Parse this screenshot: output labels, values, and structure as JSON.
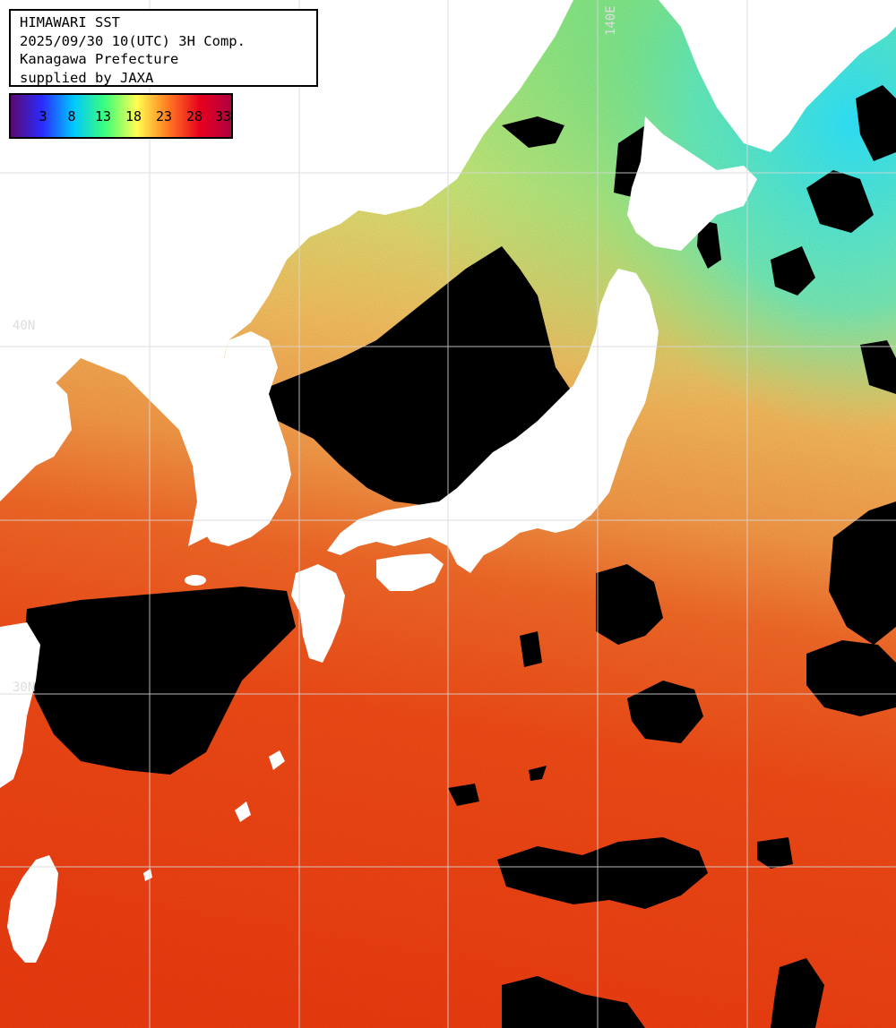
{
  "info": {
    "title": "HIMAWARI SST",
    "datetime": "2025/09/30 10(UTC) 3H Comp.",
    "region": "Kanagawa Prefecture",
    "credit": "supplied by JAXA"
  },
  "legend": {
    "ticks": [
      "3",
      "8",
      "13",
      "18",
      "23",
      "28",
      "33"
    ],
    "colors": [
      "#5a0a6e",
      "#2a2aff",
      "#00c8ff",
      "#3cff7a",
      "#ffff50",
      "#ff7a20",
      "#e8001e",
      "#b00040"
    ]
  },
  "grid_labels": {
    "lat_40": "40N",
    "lon_140": "140E",
    "lat_30": "30N"
  },
  "colors": {
    "land": "#ffffff",
    "cloud": "#000000",
    "grid": "#d8d8d8",
    "sea_cold": "#3ce0ff",
    "sea_cool": "#8cf080",
    "sea_mild": "#e8e070",
    "sea_warm": "#f8a050",
    "sea_hot": "#f54a14"
  }
}
